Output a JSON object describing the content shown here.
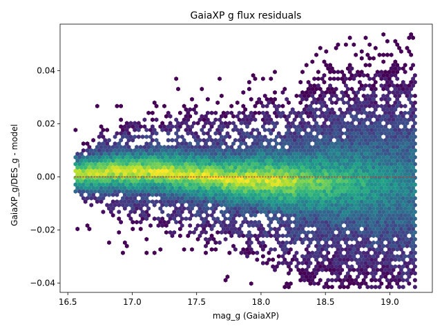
{
  "chart_data": {
    "type": "hexbin",
    "title": "GaiaXP g flux residuals",
    "xlabel": "mag_g (GaiaXP)",
    "ylabel": "GaiaXP_g/DES_g - model",
    "xlim": [
      16.44,
      19.33
    ],
    "ylim": [
      -0.0435,
      0.0575
    ],
    "xticks": [
      16.5,
      17.0,
      17.5,
      18.0,
      18.5,
      19.0
    ],
    "xtick_labels": [
      "16.5",
      "17.0",
      "17.5",
      "18.0",
      "18.5",
      "19.0"
    ],
    "yticks": [
      -0.04,
      -0.02,
      0.0,
      0.02,
      0.04
    ],
    "ytick_labels": [
      "−0.04",
      "−0.02",
      "0.00",
      "0.02",
      "0.04"
    ],
    "colormap": "viridis",
    "grid": false,
    "reference_line": {
      "y": 0.0,
      "style": "dotted",
      "color": "#d62728"
    },
    "density_profile": {
      "mag": [
        16.6,
        16.8,
        17.0,
        17.2,
        17.4,
        17.6,
        17.8,
        18.0,
        18.2,
        18.4,
        18.6,
        18.8,
        19.0,
        19.2
      ],
      "center": [
        0.001,
        0.002,
        0.002,
        0.002,
        0.001,
        0.0,
        -0.001,
        -0.001,
        -0.002,
        -0.002,
        -0.002,
        -0.002,
        -0.003,
        -0.003
      ],
      "core_halfwidth": [
        0.007,
        0.008,
        0.009,
        0.009,
        0.01,
        0.01,
        0.011,
        0.012,
        0.013,
        0.014,
        0.016,
        0.017,
        0.018,
        0.019
      ],
      "outer_halfwidth": [
        0.01,
        0.017,
        0.021,
        0.023,
        0.025,
        0.027,
        0.029,
        0.032,
        0.036,
        0.039,
        0.042,
        0.044,
        0.045,
        0.046
      ]
    }
  }
}
